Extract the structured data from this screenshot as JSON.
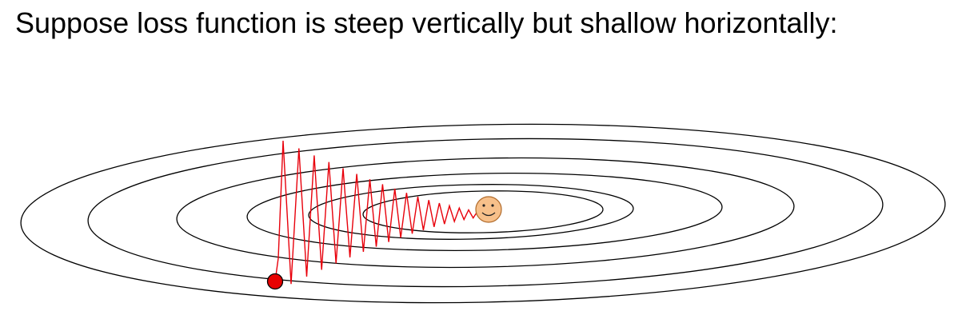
{
  "slide": {
    "title": "Suppose loss function is steep vertically but shallow horizontally:"
  },
  "diagram": {
    "contour_levels": 6,
    "colors": {
      "contour": "#000000",
      "path": "#e8000b",
      "start_point": "#e80000",
      "start_point_stroke": "#000000",
      "minimum_face": "#f7c08a",
      "minimum_face_stroke": "#b06a2a"
    },
    "icons": {
      "start": "red-dot-start-icon",
      "minimum": "smiley-face-minimum-icon"
    }
  }
}
